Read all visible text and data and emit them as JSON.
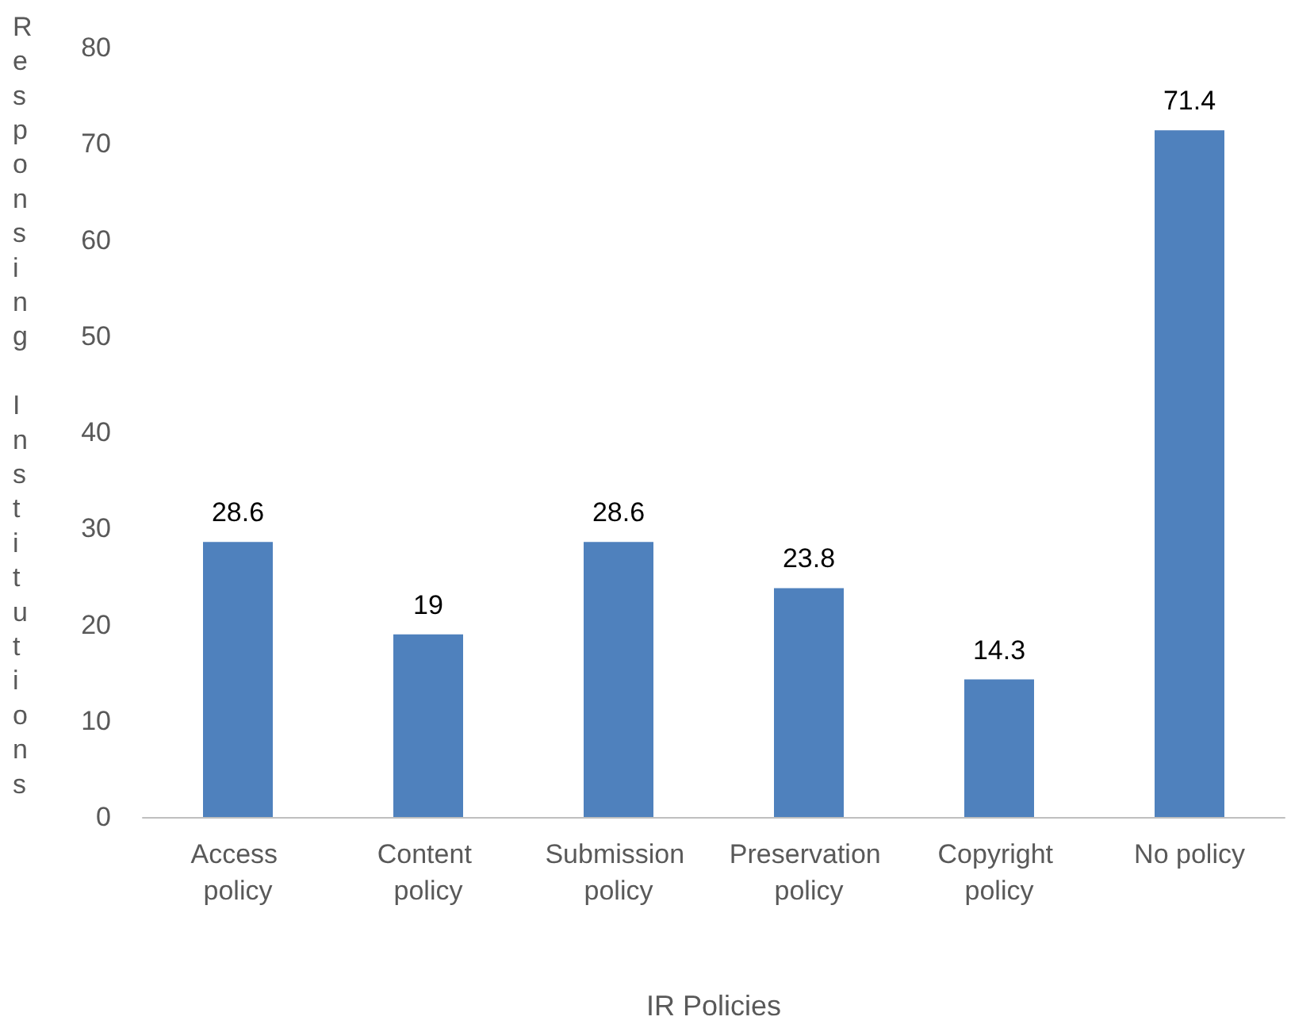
{
  "chart_data": {
    "type": "bar",
    "xlabel": "IR Policies",
    "ylabel": "Responsing Institutions",
    "categories": [
      "Access policy",
      "Content policy",
      "Submission policy",
      "Preservation policy",
      "Copyright policy",
      "No policy"
    ],
    "values": [
      28.6,
      19,
      28.6,
      23.8,
      14.3,
      71.4
    ],
    "color": "#4f81bd",
    "ylim": [
      0,
      80
    ],
    "yticks": [
      0,
      10,
      20,
      30,
      40,
      50,
      60,
      70,
      80
    ],
    "grid": false,
    "data_labels": true
  }
}
